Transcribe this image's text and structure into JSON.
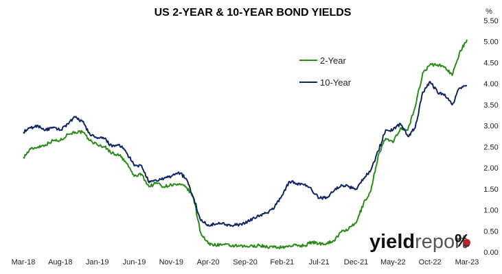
{
  "chart_data": {
    "type": "line",
    "title": "US 2-YEAR & 10-YEAR BOND YIELDS",
    "unit": "%",
    "brand": {
      "text_bold": "yield",
      "text_light": "report",
      "symbol": "%"
    },
    "x_ticks": [
      "Mar-18",
      "Aug-18",
      "Jan-19",
      "Jun-19",
      "Nov-19",
      "Apr-20",
      "Sep-20",
      "Feb-21",
      "Jul-21",
      "Dec-21",
      "May-22",
      "Oct-22",
      "Mar-23"
    ],
    "ylim": [
      0,
      5.5
    ],
    "y_ticks": [
      "0.00",
      "0.50",
      "1.00",
      "1.50",
      "2.00",
      "2.50",
      "3.00",
      "3.50",
      "4.00",
      "4.50",
      "5.00",
      "5.50"
    ],
    "legend_position": "top-right",
    "grid": false,
    "series": [
      {
        "name": "2-Year",
        "color": "#2a8a17",
        "x": [
          "Mar-18",
          "Apr-18",
          "May-18",
          "Jun-18",
          "Jul-18",
          "Aug-18",
          "Sep-18",
          "Oct-18",
          "Nov-18",
          "Dec-18",
          "Jan-19",
          "Feb-19",
          "Mar-19",
          "Apr-19",
          "May-19",
          "Jun-19",
          "Jul-19",
          "Aug-19",
          "Sep-19",
          "Oct-19",
          "Nov-19",
          "Dec-19",
          "Jan-20",
          "Feb-20",
          "Mar-20",
          "Apr-20",
          "May-20",
          "Jun-20",
          "Jul-20",
          "Aug-20",
          "Sep-20",
          "Oct-20",
          "Nov-20",
          "Dec-20",
          "Jan-21",
          "Feb-21",
          "Mar-21",
          "Apr-21",
          "May-21",
          "Jun-21",
          "Jul-21",
          "Aug-21",
          "Sep-21",
          "Oct-21",
          "Nov-21",
          "Dec-21",
          "Jan-22",
          "Feb-22",
          "Mar-22",
          "Apr-22",
          "May-22",
          "Jun-22",
          "Jul-22",
          "Aug-22",
          "Sep-22",
          "Oct-22",
          "Nov-22",
          "Dec-22",
          "Jan-23",
          "Feb-23",
          "Mar-23"
        ],
        "values": [
          2.25,
          2.45,
          2.5,
          2.55,
          2.65,
          2.65,
          2.8,
          2.85,
          2.85,
          2.65,
          2.55,
          2.5,
          2.35,
          2.3,
          2.1,
          1.8,
          1.85,
          1.55,
          1.65,
          1.55,
          1.6,
          1.6,
          1.55,
          1.3,
          0.45,
          0.2,
          0.17,
          0.18,
          0.15,
          0.14,
          0.13,
          0.14,
          0.16,
          0.12,
          0.12,
          0.11,
          0.15,
          0.16,
          0.15,
          0.24,
          0.2,
          0.21,
          0.27,
          0.48,
          0.55,
          0.69,
          1.15,
          1.45,
          2.3,
          2.7,
          2.6,
          2.95,
          2.9,
          3.45,
          4.25,
          4.45,
          4.45,
          4.4,
          4.2,
          4.75,
          5.05
        ]
      },
      {
        "name": "10-Year",
        "color": "#0f2462",
        "x": [
          "Mar-18",
          "Apr-18",
          "May-18",
          "Jun-18",
          "Jul-18",
          "Aug-18",
          "Sep-18",
          "Oct-18",
          "Nov-18",
          "Dec-18",
          "Jan-19",
          "Feb-19",
          "Mar-19",
          "Apr-19",
          "May-19",
          "Jun-19",
          "Jul-19",
          "Aug-19",
          "Sep-19",
          "Oct-19",
          "Nov-19",
          "Dec-19",
          "Jan-20",
          "Feb-20",
          "Mar-20",
          "Apr-20",
          "May-20",
          "Jun-20",
          "Jul-20",
          "Aug-20",
          "Sep-20",
          "Oct-20",
          "Nov-20",
          "Dec-20",
          "Jan-21",
          "Feb-21",
          "Mar-21",
          "Apr-21",
          "May-21",
          "Jun-21",
          "Jul-21",
          "Aug-21",
          "Sep-21",
          "Oct-21",
          "Nov-21",
          "Dec-21",
          "Jan-22",
          "Feb-22",
          "Mar-22",
          "Apr-22",
          "May-22",
          "Jun-22",
          "Jul-22",
          "Aug-22",
          "Sep-22",
          "Oct-22",
          "Nov-22",
          "Dec-22",
          "Jan-23",
          "Feb-23",
          "Mar-23"
        ],
        "values": [
          2.85,
          2.95,
          3.0,
          2.9,
          2.95,
          2.9,
          3.05,
          3.2,
          3.1,
          2.8,
          2.7,
          2.7,
          2.5,
          2.55,
          2.35,
          2.05,
          2.05,
          1.65,
          1.7,
          1.75,
          1.8,
          1.9,
          1.75,
          1.3,
          0.75,
          0.65,
          0.66,
          0.7,
          0.62,
          0.65,
          0.68,
          0.8,
          0.87,
          0.93,
          1.08,
          1.35,
          1.68,
          1.63,
          1.6,
          1.48,
          1.28,
          1.3,
          1.45,
          1.6,
          1.55,
          1.5,
          1.75,
          1.95,
          2.4,
          2.9,
          2.9,
          3.05,
          2.75,
          2.95,
          3.8,
          4.05,
          3.8,
          3.75,
          3.5,
          3.9,
          3.95
        ]
      }
    ]
  }
}
